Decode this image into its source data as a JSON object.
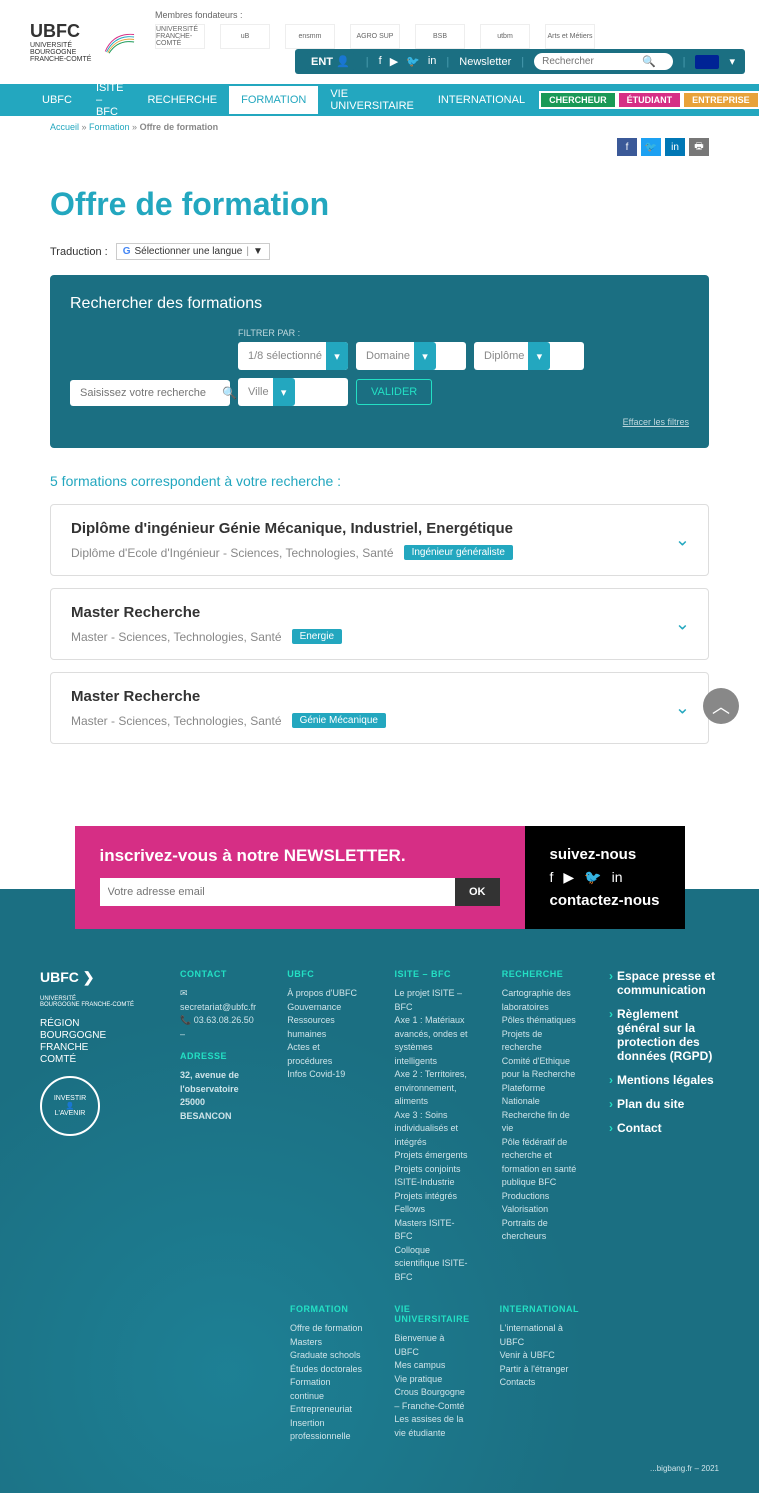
{
  "header": {
    "logo_main": "UBFC",
    "logo_sub1": "UNIVERSITÉ",
    "logo_sub2": "BOURGOGNE FRANCHE-COMTÉ",
    "founders_label": "Membres fondateurs :",
    "founders": [
      "UNIVERSITÉ FRANCHE-COMTÉ",
      "uB",
      "ensmm",
      "AGRO SUP",
      "BSB",
      "utbm",
      "Arts et Métiers"
    ],
    "ent": "ENT",
    "newsletter": "Newsletter",
    "search_placeholder": "Rechercher"
  },
  "nav": {
    "items": [
      "UBFC",
      "ISITE – BFC",
      "RECHERCHE",
      "FORMATION",
      "VIE UNIVERSITAIRE",
      "INTERNATIONAL"
    ],
    "active_index": 3,
    "roles": {
      "chercheur": "CHERCHEUR",
      "etudiant": "ÉTUDIANT",
      "entreprise": "ENTREPRISE"
    }
  },
  "breadcrumb": {
    "home": "Accueil",
    "mid": "Formation",
    "current": "Offre de formation"
  },
  "page": {
    "title": "Offre de formation",
    "translate_label": "Traduction :",
    "translate_select": "Sélectionner une langue"
  },
  "searchbox": {
    "title": "Rechercher des formations",
    "input_placeholder": "Saisissez votre recherche",
    "filter_label": "FILTRER PAR :",
    "filters": {
      "f1": "1/8 sélectionné",
      "f2": "Domaine",
      "f3": "Diplôme",
      "f4": "Ville"
    },
    "validate": "VALIDER",
    "clear": "Effacer les filtres"
  },
  "results": {
    "count_text": "5 formations correspondent à votre recherche :",
    "items": [
      {
        "title": "Diplôme d'ingénieur Génie Mécanique, Industriel, Energétique",
        "sub": "Diplôme d'Ecole d'Ingénieur - Sciences, Technologies, Santé",
        "tag": "Ingénieur généraliste"
      },
      {
        "title": "Master Recherche",
        "sub": "Master - Sciences, Technologies, Santé",
        "tag": "Energie"
      },
      {
        "title": "Master Recherche",
        "sub": "Master - Sciences, Technologies, Santé",
        "tag": "Génie Mécanique"
      }
    ]
  },
  "newsletter": {
    "heading": "inscrivez-vous à notre NEWSLETTER.",
    "placeholder": "Votre adresse email",
    "ok": "OK",
    "follow": "suivez-nous",
    "contact": "contactez-nous"
  },
  "footer": {
    "contact_h": "Contact",
    "email": "secretariat@ubfc.fr",
    "phone": "03.63.08.26.50",
    "address_h": "Adresse",
    "address": "32, avenue de l'observatoire\n25000 BESANCON",
    "region": "RÉGION\nBOURGOGNE\nFRANCHE\nCOMTÉ",
    "cols": {
      "ubfc": {
        "h": "UBFC",
        "links": [
          "À propos d'UBFC",
          "Gouvernance",
          "Ressources humaines",
          "Actes et procédures",
          "Infos Covid-19"
        ]
      },
      "isite": {
        "h": "ISITE – BFC",
        "links": [
          "Le projet ISITE – BFC",
          "Axe 1 : Matériaux avancés, ondes et systèmes intelligents",
          "Axe 2 : Territoires, environnement, aliments",
          "Axe 3 : Soins individualisés et intégrés",
          "Projets émergents",
          "Projets conjoints ISITE-Industrie",
          "Projets intégrés",
          "Fellows",
          "Masters ISITE-BFC",
          "Colloque scientifique ISITE-BFC"
        ]
      },
      "recherche": {
        "h": "RECHERCHE",
        "links": [
          "Cartographie des laboratoires",
          "Pôles thématiques",
          "Projets de recherche",
          "Comité d'Ethique pour la Recherche",
          "Plateforme Nationale Recherche fin de vie",
          "Pôle fédératif de recherche et formation en santé publique BFC",
          "Productions",
          "Valorisation",
          "Portraits de chercheurs"
        ]
      },
      "formation": {
        "h": "FORMATION",
        "links": [
          "Offre de formation",
          "Masters",
          "Graduate schools",
          "Études doctorales",
          "Formation continue",
          "Entrepreneuriat",
          "Insertion professionnelle"
        ]
      },
      "vie": {
        "h": "VIE UNIVERSITAIRE",
        "links": [
          "Bienvenue à UBFC",
          "Mes campus",
          "Vie pratique",
          "Crous Bourgogne – Franche-Comté",
          "Les assises de la vie étudiante"
        ]
      },
      "intl": {
        "h": "INTERNATIONAL",
        "links": [
          "L'international à UBFC",
          "Venir à UBFC",
          "Partir à l'étranger",
          "Contacts"
        ]
      }
    },
    "right_links": [
      "Espace presse et communication",
      "Règlement général sur la protection des données (RGPD)",
      "Mentions légales",
      "Plan du site",
      "Contact"
    ],
    "credit": "...bigbang.fr – 2021"
  }
}
